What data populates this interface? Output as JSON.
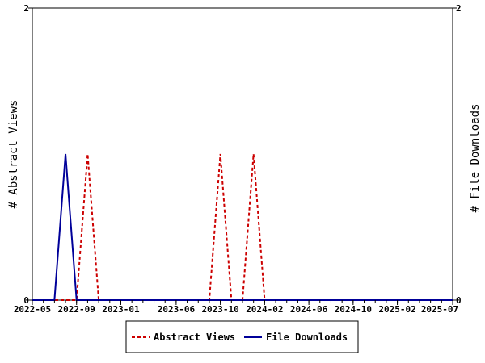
{
  "chart_data": {
    "type": "line",
    "title": "",
    "xlabel": "",
    "ylabel": "# Abstract Views",
    "y2label": "# File Downloads",
    "x_range": [
      "2022-05",
      "2025-07"
    ],
    "ylim": [
      0,
      2
    ],
    "y2lim": [
      0,
      2
    ],
    "y_ticks": [
      "0",
      "2"
    ],
    "y2_ticks": [
      "0",
      "2"
    ],
    "x_tick_labels": [
      "2022-05",
      "2022-09",
      "2023-01",
      "2023-06",
      "2023-10",
      "2024-02",
      "2024-06",
      "2024-10",
      "2025-02",
      "2025-07"
    ],
    "grid": false,
    "legend_position": "bottom-center",
    "series": [
      {
        "name": "Abstract Views",
        "axis": "left",
        "color": "#cc0000",
        "style": "dashed",
        "points": [
          [
            "2022-05",
            0
          ],
          [
            "2022-06",
            0
          ],
          [
            "2022-07",
            0
          ],
          [
            "2022-08",
            0
          ],
          [
            "2022-09",
            0
          ],
          [
            "2022-10",
            1
          ],
          [
            "2022-11",
            0
          ],
          [
            "2022-12",
            0
          ],
          [
            "2023-01",
            0
          ],
          [
            "2023-02",
            0
          ],
          [
            "2023-03",
            0
          ],
          [
            "2023-04",
            0
          ],
          [
            "2023-05",
            0
          ],
          [
            "2023-06",
            0
          ],
          [
            "2023-07",
            0
          ],
          [
            "2023-08",
            0
          ],
          [
            "2023-09",
            0
          ],
          [
            "2023-10",
            1
          ],
          [
            "2023-11",
            0
          ],
          [
            "2023-12",
            0
          ],
          [
            "2024-01",
            1
          ],
          [
            "2024-02",
            0
          ],
          [
            "2024-03",
            0
          ],
          [
            "2024-04",
            0
          ],
          [
            "2024-05",
            0
          ],
          [
            "2024-06",
            0
          ],
          [
            "2024-07",
            0
          ],
          [
            "2024-08",
            0
          ],
          [
            "2024-09",
            0
          ],
          [
            "2024-10",
            0
          ],
          [
            "2024-11",
            0
          ],
          [
            "2024-12",
            0
          ],
          [
            "2025-01",
            0
          ],
          [
            "2025-02",
            0
          ],
          [
            "2025-03",
            0
          ],
          [
            "2025-04",
            0
          ],
          [
            "2025-05",
            0
          ],
          [
            "2025-06",
            0
          ],
          [
            "2025-07",
            0
          ]
        ]
      },
      {
        "name": "File Downloads",
        "axis": "right",
        "color": "#000099",
        "style": "solid",
        "points": [
          [
            "2022-05",
            0
          ],
          [
            "2022-06",
            0
          ],
          [
            "2022-07",
            0
          ],
          [
            "2022-08",
            1
          ],
          [
            "2022-09",
            0
          ],
          [
            "2022-10",
            0
          ],
          [
            "2022-11",
            0
          ],
          [
            "2022-12",
            0
          ],
          [
            "2023-01",
            0
          ],
          [
            "2023-02",
            0
          ],
          [
            "2023-03",
            0
          ],
          [
            "2023-04",
            0
          ],
          [
            "2023-05",
            0
          ],
          [
            "2023-06",
            0
          ],
          [
            "2023-07",
            0
          ],
          [
            "2023-08",
            0
          ],
          [
            "2023-09",
            0
          ],
          [
            "2023-10",
            0
          ],
          [
            "2023-11",
            0
          ],
          [
            "2023-12",
            0
          ],
          [
            "2024-01",
            0
          ],
          [
            "2024-02",
            0
          ],
          [
            "2024-03",
            0
          ],
          [
            "2024-04",
            0
          ],
          [
            "2024-05",
            0
          ],
          [
            "2024-06",
            0
          ],
          [
            "2024-07",
            0
          ],
          [
            "2024-08",
            0
          ],
          [
            "2024-09",
            0
          ],
          [
            "2024-10",
            0
          ],
          [
            "2024-11",
            0
          ],
          [
            "2024-12",
            0
          ],
          [
            "2025-01",
            0
          ],
          [
            "2025-02",
            0
          ],
          [
            "2025-03",
            0
          ],
          [
            "2025-04",
            0
          ],
          [
            "2025-05",
            0
          ],
          [
            "2025-06",
            0
          ],
          [
            "2025-07",
            0
          ]
        ]
      }
    ]
  }
}
